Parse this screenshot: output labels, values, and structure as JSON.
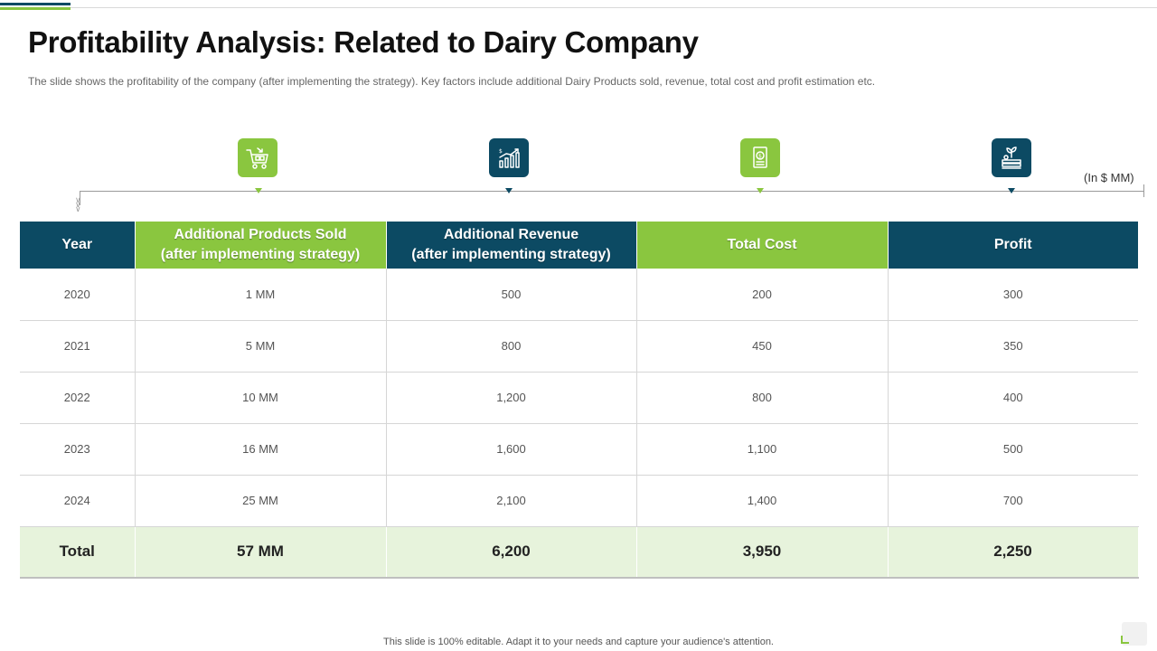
{
  "slide": {
    "title": "Profitability Analysis: Related to Dairy Company",
    "subtitle": "The slide shows the profitability of the company (after implementing the strategy). Key factors include additional Dairy Products sold, revenue, total cost and profit estimation etc.",
    "unit_note": "(In $ MM)",
    "footer": "This slide is 100% editable.  Adapt it to your needs and capture your audience's attention."
  },
  "icons": [
    {
      "name": "shopping-cart-icon",
      "color": "#8ac63f"
    },
    {
      "name": "revenue-chart-icon",
      "color": "#0c4a63"
    },
    {
      "name": "cost-document-icon",
      "color": "#8ac63f"
    },
    {
      "name": "profit-growth-icon",
      "color": "#0c4a63"
    }
  ],
  "colors": {
    "navy": "#0c4a63",
    "green": "#8ac63f",
    "total_row": "#e7f3dc"
  },
  "table": {
    "headers": {
      "year": "Year",
      "products_line1": "Additional Products Sold",
      "products_line2": "(after implementing strategy)",
      "revenue_line1": "Additional Revenue",
      "revenue_line2": "(after implementing strategy)",
      "cost": "Total Cost",
      "profit": "Profit"
    },
    "rows": [
      {
        "year": "2020",
        "products": "1 MM",
        "revenue": "500",
        "cost": "200",
        "profit": "300"
      },
      {
        "year": "2021",
        "products": "5 MM",
        "revenue": "800",
        "cost": "450",
        "profit": "350"
      },
      {
        "year": "2022",
        "products": "10 MM",
        "revenue": "1,200",
        "cost": "800",
        "profit": "400"
      },
      {
        "year": "2023",
        "products": "16 MM",
        "revenue": "1,600",
        "cost": "1,100",
        "profit": "500"
      },
      {
        "year": "2024",
        "products": "25 MM",
        "revenue": "2,100",
        "cost": "1,400",
        "profit": "700"
      }
    ],
    "total": {
      "label": "Total",
      "products": "57 MM",
      "revenue": "6,200",
      "cost": "3,950",
      "profit": "2,250"
    }
  }
}
